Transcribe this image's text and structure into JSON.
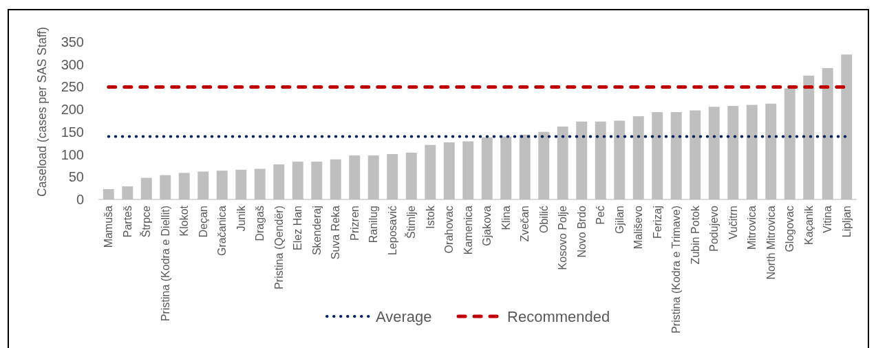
{
  "chart_data": {
    "type": "bar",
    "ylabel": "Caseload (cases per SAS Staff)",
    "categories": [
      "Mamuša",
      "Parteš",
      "Štrpce",
      "Pristina (Kodra e Diellit)",
      "Klokot",
      "Deçan",
      "Gračanica",
      "Junik",
      "Dragaš",
      "Pristina (Qendër)",
      "Elez Han",
      "Skenderaj",
      "Suva Reka",
      "Prizren",
      "Ranilug",
      "Leposavić",
      "Štimlje",
      "Istok",
      "Orahovac",
      "Kamenica",
      "Gjakova",
      "Klina",
      "Zvečan",
      "Obilić",
      "Kosovo Polje",
      "Novo Brdo",
      "Peć",
      "Gjilan",
      "Mališevo",
      "Ferizaj",
      "Pristina (Kodra e Trimave)",
      "Zubin Potok",
      "Podujevo",
      "Vučitrn",
      "Mitrovica",
      "North Mitrovica",
      "Glogovac",
      "Kaçanik",
      "Vitina",
      "Lipljan"
    ],
    "series": [
      {
        "color": "#bfbfbf",
        "values": [
          23,
          29,
          48,
          54,
          59,
          62,
          64,
          66,
          68,
          78,
          84,
          84,
          89,
          98,
          98,
          101,
          104,
          121,
          127,
          129,
          138,
          140,
          144,
          150,
          162,
          173,
          173,
          175,
          185,
          194,
          194,
          198,
          206,
          208,
          210,
          213,
          247,
          275,
          292,
          322
        ]
      },
      {
        "type": "line",
        "name": "Average",
        "color": "#002060",
        "line_style": "dotted",
        "values": [
          140,
          140,
          140,
          140,
          140,
          140,
          140,
          140,
          140,
          140,
          140,
          140,
          140,
          140,
          140,
          140,
          140,
          140,
          140,
          140,
          140,
          140,
          140,
          140,
          140,
          140,
          140,
          140,
          140,
          140,
          140,
          140,
          140,
          140,
          140,
          140,
          140,
          140,
          140,
          140
        ]
      },
      {
        "type": "line",
        "name": "Recommended",
        "color": "#c00000",
        "line_style": "dashed",
        "values": [
          250,
          250,
          250,
          250,
          250,
          250,
          250,
          250,
          250,
          250,
          250,
          250,
          250,
          250,
          250,
          250,
          250,
          250,
          250,
          250,
          250,
          250,
          250,
          250,
          250,
          250,
          250,
          250,
          250,
          250,
          250,
          250,
          250,
          250,
          250,
          250,
          250,
          250,
          250,
          250
        ]
      }
    ],
    "ylim": [
      0,
      350
    ],
    "yticks": [
      0,
      50,
      100,
      150,
      200,
      250,
      300,
      350
    ],
    "legend": "bottom",
    "marker": "none"
  }
}
